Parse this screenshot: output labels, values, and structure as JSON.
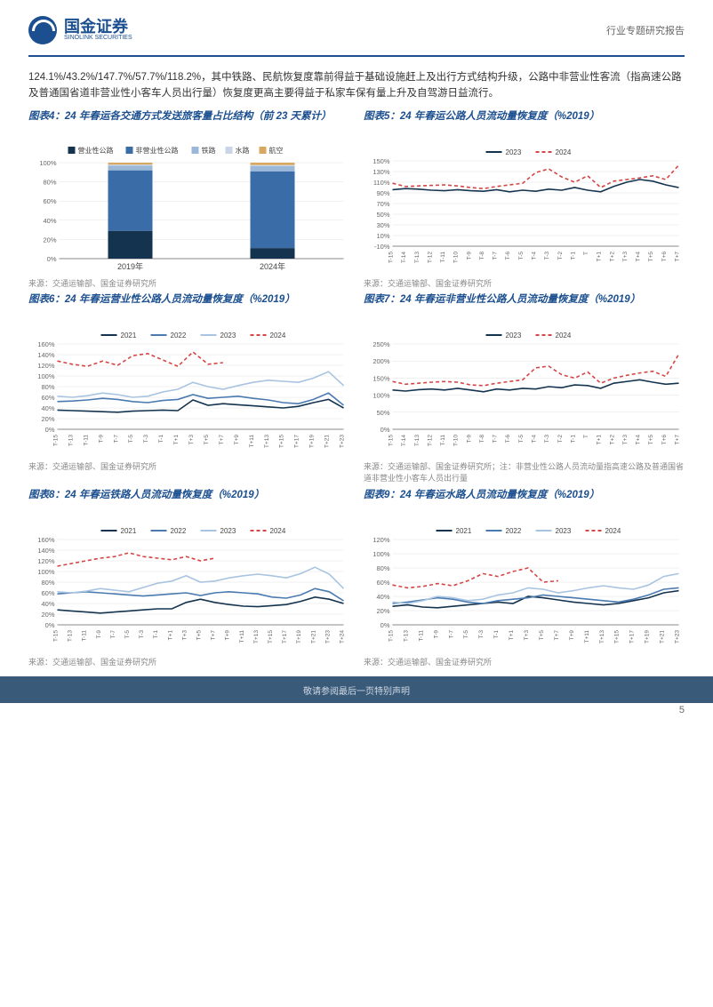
{
  "header": {
    "logo_cn": "国金证券",
    "logo_en": "SINOLINK SECURITIES",
    "doc_type": "行业专题研究报告"
  },
  "intro": "124.1%/43.2%/147.7%/57.7%/118.2%，其中铁路、民航恢复度靠前得益于基础设施赶上及出行方式结构升级，公路中非营业性客流（指高速公路及普通国省道非营业性小客车人员出行量）恢复度更高主要得益于私家车保有量上升及自驾游日益流行。",
  "colors": {
    "primary": "#1b4f8f",
    "s2021": "#14334f",
    "s2022": "#4a7ab0",
    "s2023": "#a8c4e0",
    "s2024": "#d64545",
    "grid": "#d0d0d0",
    "axis": "#666666"
  },
  "chart4": {
    "title": "图表4：24 年春运各交通方式发送旅客量占比结构（前 23 天累计）",
    "legend": [
      "营业性公路",
      "非营业性公路",
      "铁路",
      "水路",
      "航空"
    ],
    "legend_colors": [
      "#14334f",
      "#3a6ca8",
      "#9cb8d8",
      "#c8d6e6",
      "#d8a860"
    ],
    "categories": [
      "2019年",
      "2024年"
    ],
    "stacks": [
      {
        "cat": "2019年",
        "vals": [
          29,
          63,
          5,
          1,
          2
        ]
      },
      {
        "cat": "2024年",
        "vals": [
          11,
          80,
          5.5,
          1,
          2.5
        ]
      }
    ],
    "ylim": [
      0,
      100
    ],
    "ytick_step": 20,
    "yfmt": "%",
    "source": "来源：交通运输部、国金证券研究所"
  },
  "chart5": {
    "title": "图表5：24 年春运公路人员流动量恢复度（%2019）",
    "legend": [
      "2023",
      "2024"
    ],
    "legend_styles": [
      "solid",
      "dash"
    ],
    "legend_colors": [
      "#14334f",
      "#d64545"
    ],
    "x": [
      "T-15",
      "T-14",
      "T-13",
      "T-12",
      "T-11",
      "T-10",
      "T-9",
      "T-8",
      "T-7",
      "T-6",
      "T-5",
      "T-4",
      "T-3",
      "T-2",
      "T-1",
      "T",
      "T+1",
      "T+2",
      "T+3",
      "T+4",
      "T+5",
      "T+6",
      "T+7"
    ],
    "series": {
      "2023": [
        96,
        98,
        97,
        95,
        94,
        96,
        94,
        93,
        96,
        92,
        95,
        93,
        97,
        95,
        100,
        95,
        92,
        102,
        110,
        115,
        112,
        105,
        100
      ],
      "2024": [
        108,
        102,
        103,
        104,
        105,
        103,
        100,
        98,
        102,
        105,
        108,
        128,
        135,
        120,
        110,
        122,
        100,
        112,
        115,
        118,
        122,
        115,
        142
      ]
    },
    "ylim": [
      -10,
      150
    ],
    "ytick_step": 20,
    "yfmt": "%",
    "source": "来源：交通运输部、国金证券研究所"
  },
  "chart6": {
    "title": "图表6：24 年春运营业性公路人员流动量恢复度（%2019）",
    "legend": [
      "2021",
      "2022",
      "2023",
      "2024"
    ],
    "legend_colors": [
      "#14334f",
      "#4a7ab0",
      "#a8c4e0",
      "#d64545"
    ],
    "legend_styles": [
      "solid",
      "solid",
      "solid",
      "dash"
    ],
    "x": [
      "T-15",
      "T-13",
      "T-11",
      "T-9",
      "T-7",
      "T-5",
      "T-3",
      "T-1",
      "T+1",
      "T+3",
      "T+5",
      "T+7",
      "T+9",
      "T+11",
      "T+13",
      "T+15",
      "T+17",
      "T+19",
      "T+21",
      "T+23"
    ],
    "series": {
      "2021": [
        36,
        35,
        34,
        33,
        32,
        34,
        35,
        36,
        35,
        55,
        45,
        48,
        46,
        44,
        42,
        40,
        43,
        50,
        56,
        40
      ],
      "2022": [
        52,
        53,
        55,
        58,
        56,
        52,
        50,
        54,
        56,
        65,
        58,
        60,
        62,
        58,
        55,
        50,
        48,
        56,
        68,
        45
      ],
      "2023": [
        62,
        60,
        63,
        68,
        65,
        60,
        62,
        70,
        75,
        88,
        80,
        75,
        82,
        88,
        92,
        90,
        88,
        96,
        108,
        82
      ],
      "2024": [
        128,
        122,
        118,
        128,
        120,
        138,
        142,
        130,
        118,
        145,
        122,
        125,
        null,
        null,
        null,
        null,
        null,
        null,
        null,
        null
      ]
    },
    "ylim": [
      0,
      160
    ],
    "ytick_step": 20,
    "yfmt": "%",
    "source": "来源：交通运输部、国金证券研究所"
  },
  "chart7": {
    "title": "图表7：24 年春运非营业性公路人员流动量恢复度（%2019）",
    "legend": [
      "2023",
      "2024"
    ],
    "legend_colors": [
      "#14334f",
      "#d64545"
    ],
    "legend_styles": [
      "solid",
      "dash"
    ],
    "x": [
      "T-15",
      "T-14",
      "T-13",
      "T-12",
      "T-11",
      "T-10",
      "T-9",
      "T-8",
      "T-7",
      "T-6",
      "T-5",
      "T-4",
      "T-3",
      "T-2",
      "T-1",
      "T",
      "T+1",
      "T+2",
      "T+3",
      "T+4",
      "T+5",
      "T+6",
      "T+7"
    ],
    "series": {
      "2023": [
        115,
        112,
        116,
        118,
        115,
        120,
        115,
        110,
        118,
        115,
        120,
        118,
        125,
        122,
        130,
        128,
        120,
        135,
        140,
        145,
        138,
        132,
        135
      ],
      "2024": [
        140,
        132,
        135,
        138,
        140,
        138,
        130,
        128,
        135,
        140,
        145,
        180,
        185,
        160,
        150,
        168,
        135,
        150,
        158,
        165,
        170,
        155,
        220
      ]
    },
    "ylim": [
      0,
      250
    ],
    "ytick_step": 50,
    "yfmt": "%",
    "source": "来源：交通运输部、国金证券研究所；注：非营业性公路人员流动量指高速公路及普通国省道非营业性小客车人员出行量"
  },
  "chart8": {
    "title": "图表8：24 年春运铁路人员流动量恢复度（%2019）",
    "legend": [
      "2021",
      "2022",
      "2023",
      "2024"
    ],
    "legend_colors": [
      "#14334f",
      "#4a7ab0",
      "#a8c4e0",
      "#d64545"
    ],
    "legend_styles": [
      "solid",
      "solid",
      "solid",
      "dash"
    ],
    "x": [
      "T-15",
      "T-13",
      "T-11",
      "T-9",
      "T-7",
      "T-5",
      "T-3",
      "T-1",
      "T+1",
      "T+3",
      "T+5",
      "T+7",
      "T+9",
      "T+11",
      "T+13",
      "T+15",
      "T+17",
      "T+19",
      "T+21",
      "T+23",
      "T+24"
    ],
    "series": {
      "2021": [
        28,
        26,
        24,
        22,
        24,
        26,
        28,
        30,
        30,
        42,
        48,
        42,
        38,
        35,
        34,
        36,
        38,
        44,
        52,
        48,
        40
      ],
      "2022": [
        58,
        60,
        62,
        60,
        58,
        56,
        54,
        56,
        58,
        60,
        55,
        60,
        62,
        60,
        58,
        52,
        50,
        56,
        68,
        62,
        45
      ],
      "2023": [
        62,
        60,
        63,
        68,
        65,
        62,
        70,
        78,
        82,
        92,
        80,
        82,
        88,
        92,
        95,
        92,
        88,
        96,
        108,
        95,
        68
      ],
      "2024": [
        110,
        115,
        120,
        125,
        128,
        135,
        128,
        125,
        122,
        128,
        120,
        125,
        null,
        null,
        null,
        null,
        null,
        null,
        null,
        null,
        null
      ]
    },
    "ylim": [
      0,
      160
    ],
    "ytick_step": 20,
    "yfmt": "%",
    "source": "来源：交通运输部、国金证券研究所"
  },
  "chart9": {
    "title": "图表9：24 年春运水路人员流动量恢复度（%2019）",
    "legend": [
      "2021",
      "2022",
      "2023",
      "2024"
    ],
    "legend_colors": [
      "#14334f",
      "#4a7ab0",
      "#a8c4e0",
      "#d64545"
    ],
    "legend_styles": [
      "solid",
      "solid",
      "solid",
      "dash"
    ],
    "x": [
      "T-15",
      "T-13",
      "T-11",
      "T-9",
      "T-7",
      "T-5",
      "T-3",
      "T-1",
      "T+1",
      "T+3",
      "T+5",
      "T+7",
      "T+9",
      "T+11",
      "T+13",
      "T+15",
      "T+17",
      "T+19",
      "T+21",
      "T+23"
    ],
    "series": {
      "2021": [
        26,
        28,
        25,
        24,
        26,
        28,
        30,
        32,
        30,
        40,
        38,
        35,
        32,
        30,
        28,
        30,
        34,
        38,
        45,
        48
      ],
      "2022": [
        30,
        32,
        35,
        38,
        36,
        32,
        30,
        34,
        36,
        38,
        42,
        40,
        38,
        36,
        34,
        32,
        36,
        42,
        50,
        52
      ],
      "2023": [
        32,
        30,
        34,
        40,
        38,
        34,
        36,
        42,
        45,
        52,
        50,
        45,
        48,
        52,
        55,
        52,
        50,
        56,
        68,
        72
      ],
      "2024": [
        56,
        52,
        54,
        58,
        55,
        62,
        72,
        68,
        75,
        80,
        60,
        62,
        null,
        null,
        null,
        null,
        null,
        null,
        null,
        null
      ]
    },
    "ylim": [
      0,
      120
    ],
    "ytick_step": 20,
    "yfmt": "%",
    "source": "来源：交通运输部、国金证券研究所"
  },
  "footer": {
    "note": "敬请参阅最后一页特别声明",
    "page": "5"
  }
}
